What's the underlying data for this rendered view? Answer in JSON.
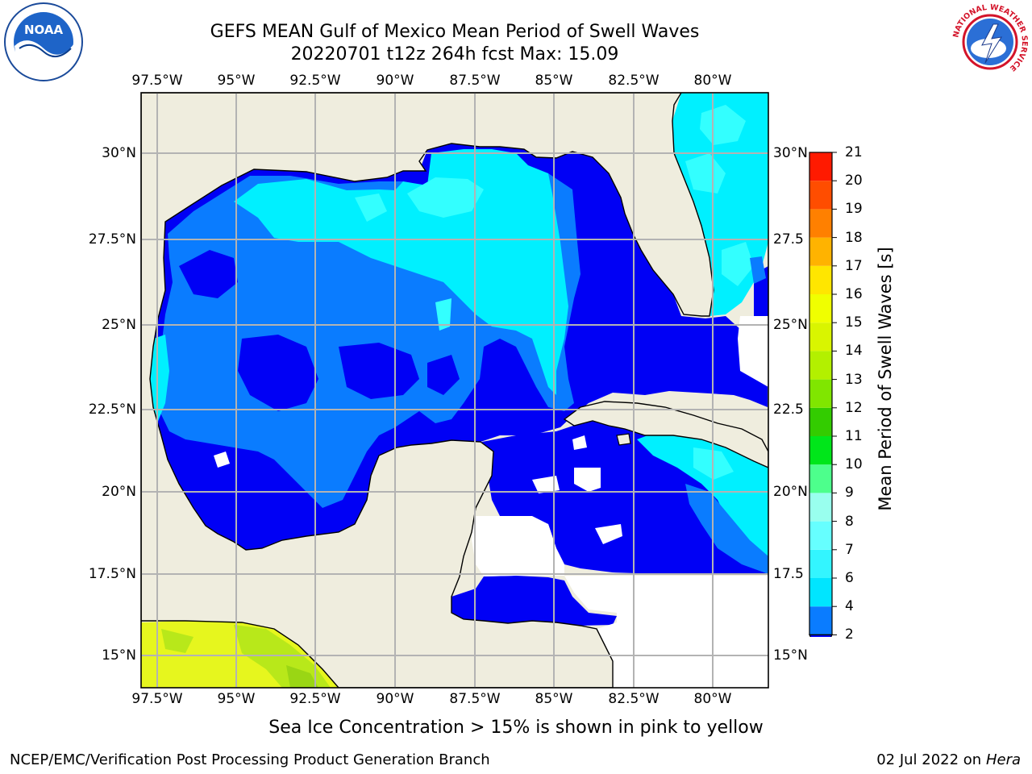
{
  "title_line1": "GEFS MEAN Gulf of Mexico Mean Period of Swell Waves",
  "title_line2": "20220701 t12z 264h fcst   Max: 15.09",
  "logos": {
    "noaa_text": "NOAA",
    "nws_ring_text": "NATIONAL WEATHER SERVICE"
  },
  "lon_labels": [
    "97.5°W",
    "95°W",
    "92.5°W",
    "90°W",
    "87.5°W",
    "85°W",
    "82.5°W",
    "80°W"
  ],
  "lat_labels_left": [
    "30°N",
    "27.5°N",
    "25°N",
    "22.5°N",
    "20°N",
    "17.5°N",
    "15°N"
  ],
  "lat_labels_right": [
    "30°N",
    "27.5",
    "25°N",
    "22.5",
    "20°N",
    "17.5",
    "15°N"
  ],
  "colorbar": {
    "label": "Mean Period of Swell Waves [s]",
    "ticks": [
      "2",
      "4",
      "6",
      "7",
      "8",
      "9",
      "10",
      "11",
      "12",
      "13",
      "14",
      "15",
      "16",
      "17",
      "18",
      "19",
      "20",
      "21"
    ],
    "colors": [
      "#0a7cff",
      "#00e5ff",
      "#33f5ff",
      "#66ffff",
      "#99ffee",
      "#4dff8c",
      "#00e61a",
      "#33cc00",
      "#80e600",
      "#b3f000",
      "#d9f500",
      "#f0ff00",
      "#ffe600",
      "#ffb300",
      "#ff8000",
      "#ff4d00",
      "#ff1a00"
    ],
    "extend_color": "#0000f5"
  },
  "map_colors": {
    "land": "#efedde",
    "ocean_2": "#0000f5",
    "ocean_4": "#0a7cff",
    "ocean_6": "#00f0ff",
    "ocean_7": "#33ffff",
    "ice_yellow": "#e6f61e",
    "ice_green": "#b8e81a",
    "grid": "#b3b3b3"
  },
  "note": "Sea Ice Concentration > 15% is shown in pink to yellow",
  "footer": {
    "left": "NCEP/EMC/Verification Post Processing Product Generation Branch",
    "right_prefix": "02 Jul 2022 on ",
    "right_host": "Hera"
  }
}
